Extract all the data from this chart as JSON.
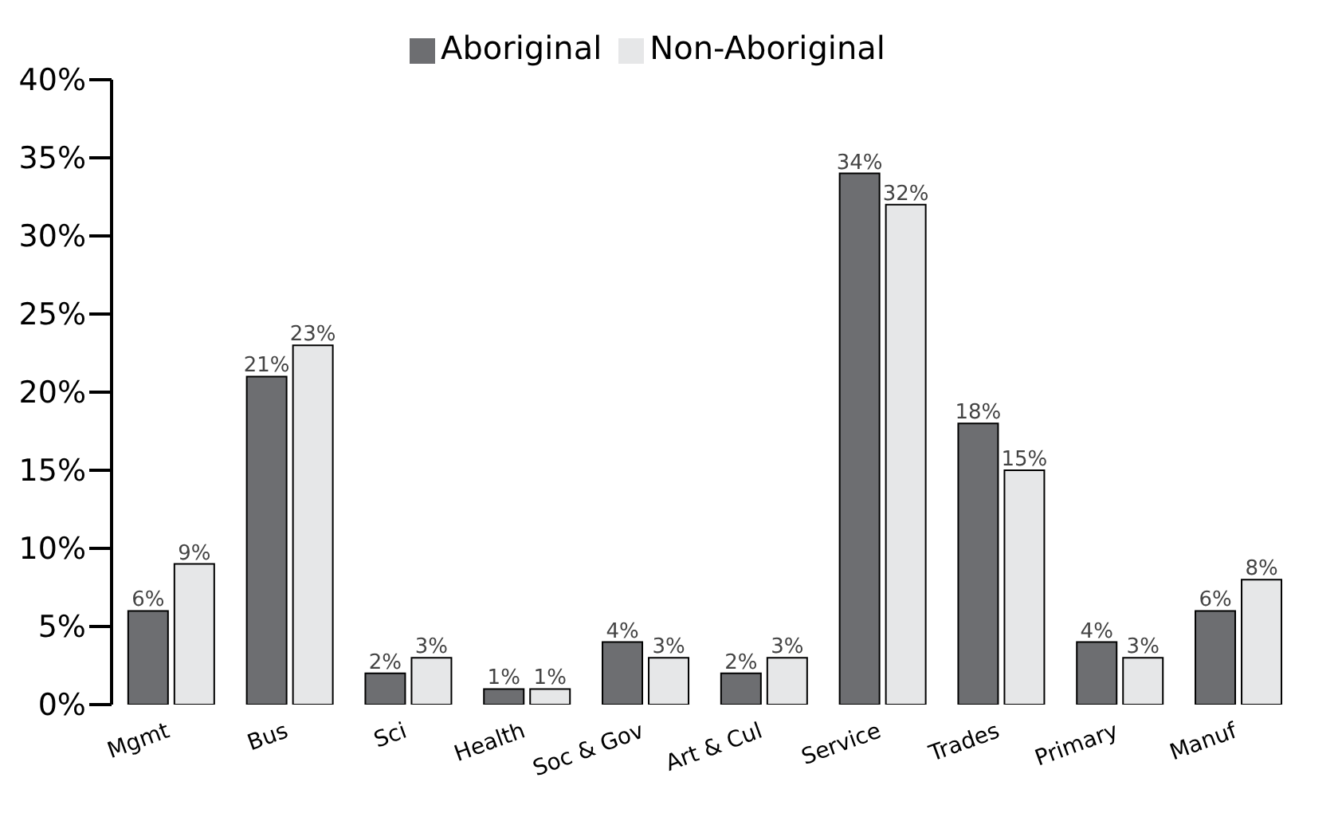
{
  "chart_data": {
    "type": "bar",
    "categories": [
      "Mgmt",
      "Bus",
      "Sci",
      "Health",
      "Soc & Gov",
      "Art & Cul",
      "Service",
      "Trades",
      "Primary",
      "Manuf"
    ],
    "series": [
      {
        "name": "Aboriginal",
        "color": "#6d6e71",
        "values": [
          6,
          21,
          2,
          1,
          4,
          2,
          34,
          18,
          4,
          6
        ],
        "value_labels": [
          "6%",
          "21%",
          "2%",
          "1%",
          "4%",
          "2%",
          "34%",
          "18%",
          "4%",
          "6%"
        ]
      },
      {
        "name": "Non-Aboriginal",
        "color": "#e6e7e8",
        "values": [
          9,
          23,
          3,
          1,
          3,
          3,
          32,
          15,
          3,
          8
        ],
        "value_labels": [
          "9%",
          "23%",
          "3%",
          "1%",
          "3%",
          "3%",
          "32%",
          "15%",
          "3%",
          "8%"
        ]
      }
    ],
    "ylim": [
      0,
      40
    ],
    "yticks": [
      {
        "value": 0,
        "label": "0%"
      },
      {
        "value": 5,
        "label": "5%"
      },
      {
        "value": 10,
        "label": "10%"
      },
      {
        "value": 15,
        "label": "15%"
      },
      {
        "value": 20,
        "label": "20%"
      },
      {
        "value": 25,
        "label": "25%"
      },
      {
        "value": 30,
        "label": "30%"
      },
      {
        "value": 35,
        "label": "35%"
      },
      {
        "value": 40,
        "label": "40%"
      }
    ],
    "grid": false,
    "legend": "top"
  }
}
